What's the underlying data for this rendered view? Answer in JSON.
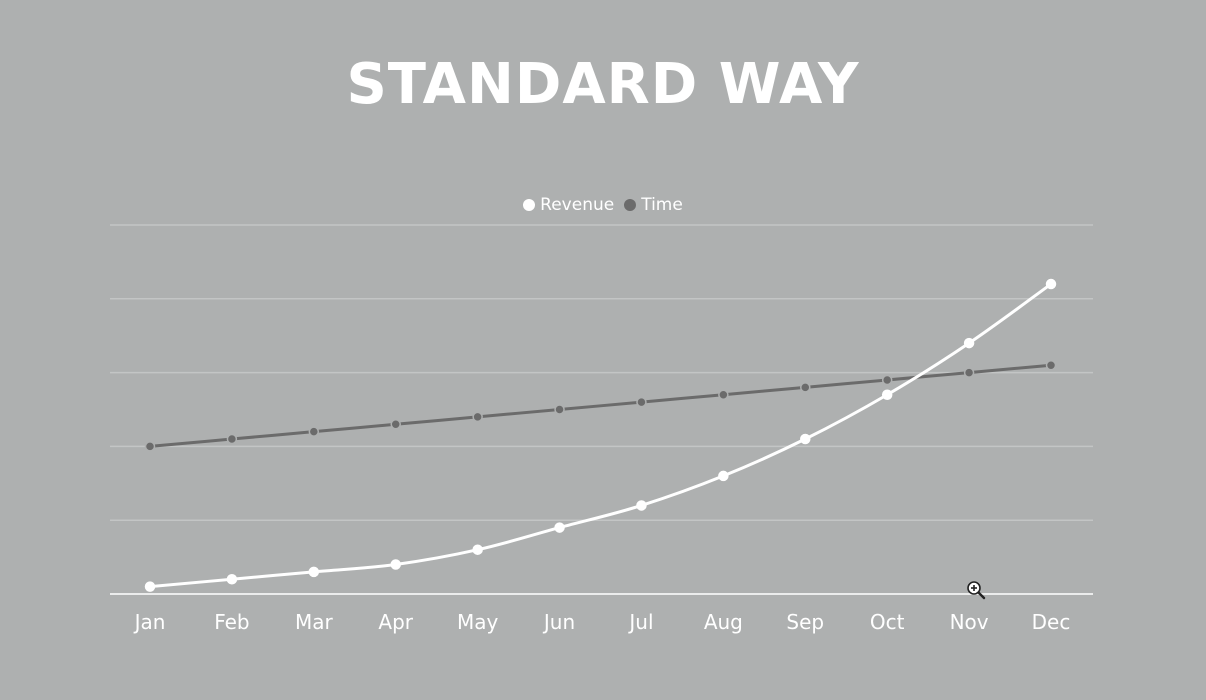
{
  "chart_data": {
    "type": "line",
    "title": "STANDARD WAY",
    "categories": [
      "Jan",
      "Feb",
      "Mar",
      "Apr",
      "May",
      "Jun",
      "Jul",
      "Aug",
      "Sep",
      "Oct",
      "Nov",
      "Dec"
    ],
    "series": [
      {
        "name": "Revenue",
        "color": "#ffffff",
        "values": [
          1.0,
          2.0,
          3.0,
          4.0,
          6.0,
          9.0,
          12.0,
          16.0,
          21.0,
          27.0,
          34.0,
          42.0
        ]
      },
      {
        "name": "Time",
        "color": "#6b6b6b",
        "values": [
          20.0,
          21.0,
          22.0,
          23.0,
          24.0,
          25.0,
          26.0,
          27.0,
          28.0,
          29.0,
          30.0,
          31.0
        ]
      }
    ],
    "ylim": [
      0,
      50
    ],
    "grid": true,
    "xlabel": "",
    "ylabel": "",
    "legend": "top-center"
  },
  "colors": {
    "background": "#aeb0b0",
    "grid": "#c3c5c5",
    "axis": "#ffffff"
  },
  "icons": {
    "cursor": "zoom-in-icon"
  }
}
